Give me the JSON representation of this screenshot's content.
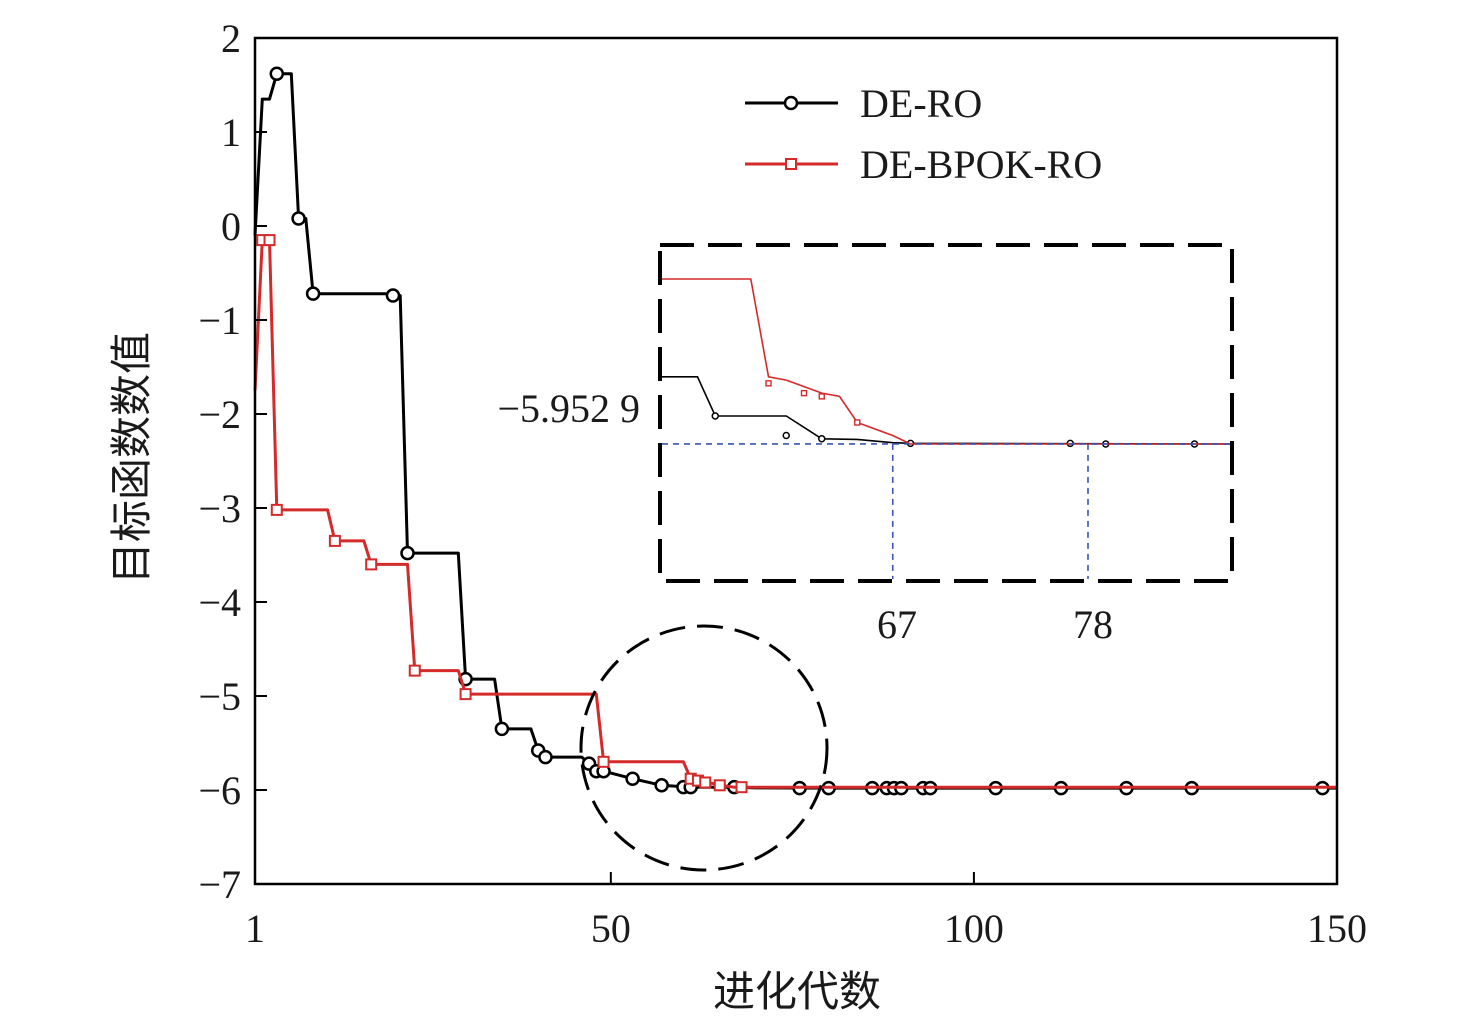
{
  "chart_data": {
    "type": "line",
    "xlabel": "进化代数",
    "ylabel": "目标函数数值",
    "xlim": [
      1,
      150
    ],
    "ylim": [
      -7,
      2
    ],
    "xticks": [
      1,
      50,
      100,
      150
    ],
    "yticks": [
      2,
      1,
      0,
      -1,
      -2,
      -3,
      -4,
      -5,
      -6,
      -7
    ],
    "xtick_labels": [
      "1",
      "50",
      "100",
      "150"
    ],
    "ytick_labels": [
      "2",
      "1",
      "0",
      "−1",
      "−2",
      "−3",
      "−4",
      "−5",
      "−6",
      "−7"
    ],
    "grid": false,
    "legend_position": "top-right",
    "series": [
      {
        "name": "DE-RO",
        "color": "#000000",
        "marker": "circle",
        "points": [
          [
            1,
            -0.1
          ],
          [
            2,
            1.35
          ],
          [
            3,
            1.35
          ],
          [
            4,
            1.62
          ],
          [
            6,
            1.62
          ],
          [
            7,
            0.08
          ],
          [
            8,
            0.08
          ],
          [
            9,
            -0.72
          ],
          [
            19,
            -0.72
          ],
          [
            20,
            -0.74
          ],
          [
            21,
            -0.74
          ],
          [
            22,
            -3.48
          ],
          [
            29,
            -3.48
          ],
          [
            30,
            -4.82
          ],
          [
            34,
            -4.82
          ],
          [
            35,
            -5.35
          ],
          [
            39,
            -5.35
          ],
          [
            40,
            -5.58
          ],
          [
            40,
            -5.58
          ],
          [
            41,
            -5.65
          ],
          [
            46,
            -5.65
          ],
          [
            47,
            -5.72
          ],
          [
            48,
            -5.8
          ],
          [
            49,
            -5.8
          ],
          [
            49,
            -5.8
          ],
          [
            53,
            -5.88
          ],
          [
            57,
            -5.95
          ],
          [
            59,
            -5.96
          ],
          [
            60,
            -5.97
          ],
          [
            61,
            -5.97
          ],
          [
            67,
            -5.97
          ],
          [
            70,
            -5.978
          ],
          [
            80,
            -5.98
          ],
          [
            86,
            -5.98
          ],
          [
            89,
            -5.98
          ],
          [
            90,
            -5.98
          ],
          [
            91,
            -5.98
          ],
          [
            92,
            -5.98
          ],
          [
            94,
            -5.98
          ],
          [
            95,
            -5.98
          ],
          [
            103,
            -5.98
          ],
          [
            112,
            -5.98
          ],
          [
            121,
            -5.98
          ],
          [
            130,
            -5.98
          ],
          [
            148,
            -5.98
          ],
          [
            150,
            -5.98
          ]
        ],
        "marker_points": [
          [
            4,
            1.62
          ],
          [
            7,
            0.08
          ],
          [
            9,
            -0.72
          ],
          [
            20,
            -0.74
          ],
          [
            22,
            -3.48
          ],
          [
            30,
            -4.82
          ],
          [
            35,
            -5.35
          ],
          [
            40,
            -5.58
          ],
          [
            41,
            -5.65
          ],
          [
            47,
            -5.72
          ],
          [
            48,
            -5.8
          ],
          [
            49,
            -5.8
          ],
          [
            53,
            -5.88
          ],
          [
            57,
            -5.95
          ],
          [
            60,
            -5.97
          ],
          [
            61,
            -5.97
          ],
          [
            67,
            -5.97
          ],
          [
            76,
            -5.98
          ],
          [
            80,
            -5.98
          ],
          [
            86,
            -5.98
          ],
          [
            88,
            -5.98
          ],
          [
            89,
            -5.98
          ],
          [
            90,
            -5.98
          ],
          [
            93,
            -5.98
          ],
          [
            94,
            -5.98
          ],
          [
            103,
            -5.98
          ],
          [
            112,
            -5.98
          ],
          [
            121,
            -5.98
          ],
          [
            130,
            -5.98
          ],
          [
            148,
            -5.98
          ]
        ]
      },
      {
        "name": "DE-BPOK-RO",
        "color": "#d42a2a",
        "marker": "square",
        "points": [
          [
            1,
            -1.75
          ],
          [
            2,
            -0.15
          ],
          [
            3,
            -0.15
          ],
          [
            4,
            -3.02
          ],
          [
            11,
            -3.02
          ],
          [
            12,
            -3.35
          ],
          [
            16,
            -3.35
          ],
          [
            17,
            -3.6
          ],
          [
            22,
            -3.6
          ],
          [
            23,
            -4.73
          ],
          [
            29,
            -4.73
          ],
          [
            30,
            -4.98
          ],
          [
            48,
            -4.98
          ],
          [
            49,
            -5.7
          ],
          [
            60,
            -5.7
          ],
          [
            61,
            -5.88
          ],
          [
            62,
            -5.9
          ],
          [
            63,
            -5.92
          ],
          [
            64,
            -5.93
          ],
          [
            65,
            -5.95
          ],
          [
            66,
            -5.96
          ],
          [
            67,
            -5.97
          ],
          [
            150,
            -5.97
          ]
        ],
        "marker_points": [
          [
            2,
            -0.15
          ],
          [
            3,
            -0.15
          ],
          [
            4,
            -3.02
          ],
          [
            12,
            -3.35
          ],
          [
            17,
            -3.6
          ],
          [
            23,
            -4.73
          ],
          [
            30,
            -4.98
          ],
          [
            49,
            -5.7
          ],
          [
            61,
            -5.88
          ],
          [
            62,
            -5.9
          ],
          [
            63,
            -5.92
          ],
          [
            65,
            -5.95
          ],
          [
            68,
            -5.97
          ]
        ]
      }
    ],
    "inset": {
      "annotation_value": "−5.952 9",
      "annotation_y": -5.9529,
      "xtick_labels": [
        "67",
        "78"
      ],
      "xticks": [
        67,
        78
      ],
      "xlim": [
        54,
        86
      ],
      "series": [
        {
          "name": "DE-RO",
          "points": [
            [
              54,
              -5.85
            ],
            [
              56,
              -5.85
            ],
            [
              57,
              -5.91
            ],
            [
              61,
              -5.91
            ],
            [
              63,
              -5.945
            ],
            [
              65,
              -5.946
            ],
            [
              67,
              -5.951
            ],
            [
              68,
              -5.952
            ],
            [
              86,
              -5.953
            ]
          ],
          "marker_points": [
            [
              57,
              -5.91
            ],
            [
              61,
              -5.94
            ],
            [
              63,
              -5.945
            ],
            [
              68,
              -5.952
            ],
            [
              77,
              -5.952
            ],
            [
              79,
              -5.953
            ],
            [
              84,
              -5.953
            ]
          ]
        },
        {
          "name": "DE-BPOK-RO",
          "points": [
            [
              54,
              -5.7
            ],
            [
              59,
              -5.7
            ],
            [
              60,
              -5.85
            ],
            [
              61,
              -5.855
            ],
            [
              63,
              -5.875
            ],
            [
              64,
              -5.88
            ],
            [
              65,
              -5.92
            ],
            [
              67,
              -5.94
            ],
            [
              68,
              -5.953
            ],
            [
              86,
              -5.953
            ]
          ],
          "marker_points": [
            [
              60,
              -5.86
            ],
            [
              62,
              -5.875
            ],
            [
              63,
              -5.88
            ],
            [
              65,
              -5.92
            ]
          ]
        }
      ]
    }
  }
}
